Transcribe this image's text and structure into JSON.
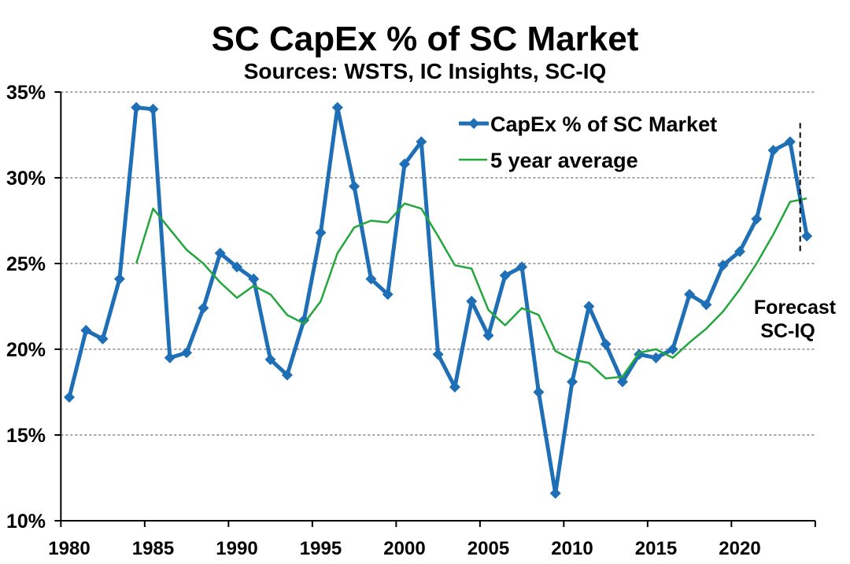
{
  "chart_data": {
    "type": "line",
    "title": "SC CapEx % of SC Market",
    "subtitle": "Sources: WSTS, IC Insights, SC-IQ",
    "xlabel": "",
    "ylabel": "",
    "x": [
      1980,
      1981,
      1982,
      1983,
      1984,
      1985,
      1986,
      1987,
      1988,
      1989,
      1990,
      1991,
      1992,
      1993,
      1994,
      1995,
      1996,
      1997,
      1998,
      1999,
      2000,
      2001,
      2002,
      2003,
      2004,
      2005,
      2006,
      2007,
      2008,
      2009,
      2010,
      2011,
      2012,
      2013,
      2014,
      2015,
      2016,
      2017,
      2018,
      2019,
      2020,
      2021,
      2022,
      2023,
      2024
    ],
    "xlim": [
      1979.5,
      2024.5
    ],
    "xtick_labels": [
      "1980",
      "1985",
      "1990",
      "1995",
      "2000",
      "2005",
      "2010",
      "2015",
      "2020"
    ],
    "ylim": [
      10,
      35
    ],
    "yticks": [
      10,
      15,
      20,
      25,
      30,
      35
    ],
    "ytick_labels": [
      "10%",
      "15%",
      "20%",
      "25%",
      "30%",
      "35%"
    ],
    "grid": true,
    "legend_position": "top-right",
    "series": [
      {
        "name": "CapEx % of SC Market",
        "color": "#1f6fb6",
        "values": [
          17.2,
          21.1,
          20.6,
          24.1,
          34.1,
          34.0,
          19.5,
          19.8,
          22.4,
          25.6,
          24.8,
          24.1,
          19.4,
          18.5,
          21.7,
          26.8,
          34.1,
          29.5,
          24.1,
          23.2,
          30.8,
          32.1,
          19.7,
          17.8,
          22.8,
          20.8,
          24.3,
          24.8,
          17.5,
          11.6,
          18.1,
          22.5,
          20.3,
          18.1,
          19.7,
          19.5,
          20.0,
          23.2,
          22.6,
          24.9,
          25.7,
          27.6,
          31.6,
          32.1,
          26.6
        ]
      },
      {
        "name": "5 year average",
        "color": "#23a63d",
        "values": [
          null,
          null,
          null,
          null,
          25.0,
          28.2,
          27.0,
          25.8,
          25.0,
          23.9,
          23.0,
          23.7,
          23.2,
          22.0,
          21.5,
          22.8,
          25.6,
          27.1,
          27.5,
          27.4,
          28.5,
          28.2,
          26.6,
          24.9,
          24.7,
          22.3,
          21.4,
          22.4,
          22.0,
          19.9,
          19.4,
          19.2,
          18.3,
          18.4,
          19.8,
          20.0,
          19.5,
          20.4,
          21.2,
          22.2,
          23.5,
          25.0,
          26.7,
          28.6,
          28.8
        ]
      }
    ],
    "annotations": [
      {
        "text_lines": [
          "Forecast",
          "SC-IQ"
        ],
        "x": 2023.6,
        "y_range": [
          25.5,
          33.2
        ]
      }
    ]
  }
}
